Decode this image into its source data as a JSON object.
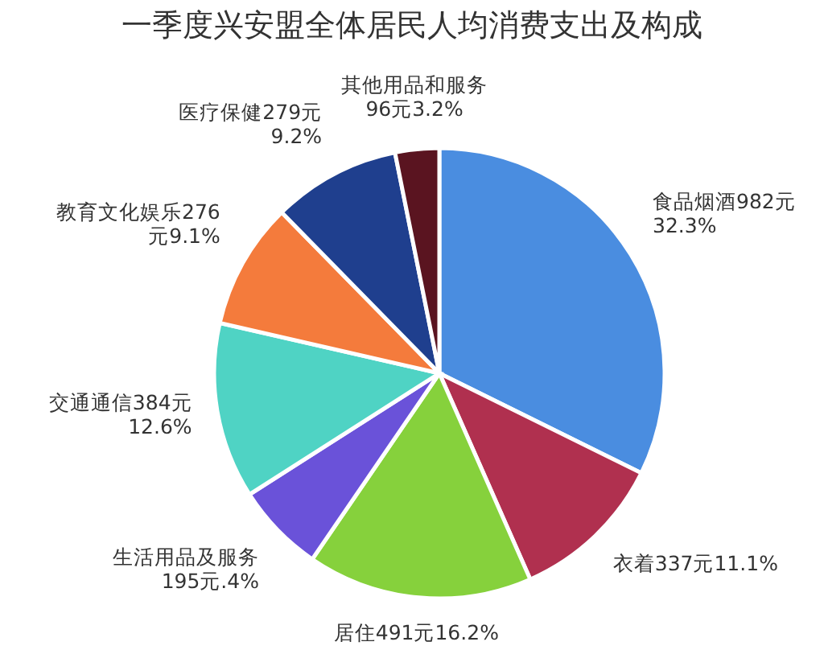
{
  "chart_data": {
    "type": "pie",
    "title": "一季度兴安盟全体居民人均消费支出及构成",
    "categories": [
      "食品烟酒",
      "衣着",
      "居住",
      "生活用品及服务",
      "交通通信",
      "教育文化娱乐",
      "医疗保健",
      "其他用品和服务"
    ],
    "values": [
      982,
      337,
      491,
      195,
      384,
      276,
      279,
      96
    ],
    "value_labels": [
      "982元\n32.3%",
      "337元11.1%",
      "491元16.2%",
      "\n195元.4%",
      "384元\n12.6%",
      "276\n元9.1%",
      "279元\n9.2%",
      "\n96元3.2%"
    ],
    "colors": [
      "#4a8de0",
      "#b0304f",
      "#86d13c",
      "#6a52d9",
      "#4fd3c4",
      "#f47b3c",
      "#1f3f8e",
      "#5a1420"
    ]
  }
}
